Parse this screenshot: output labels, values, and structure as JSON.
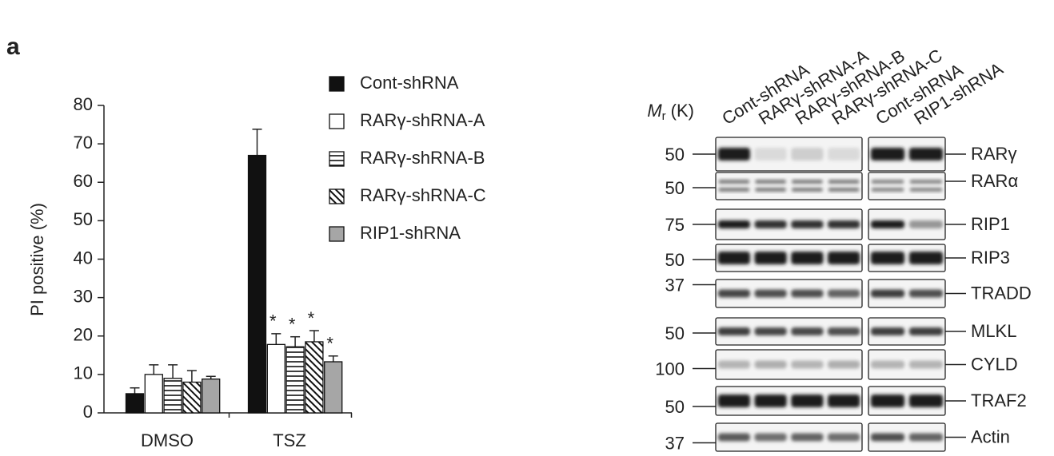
{
  "panel_label": "a",
  "chart_data": {
    "type": "bar",
    "ylabel": "PI positive (%)",
    "categories": [
      "DMSO",
      "TSZ"
    ],
    "series": [
      {
        "name": "Cont-shRNA",
        "color": "#111111",
        "pattern": "solid",
        "values": [
          5,
          67
        ],
        "errors": [
          1.5,
          6.8
        ]
      },
      {
        "name": "RARγ-shRNA-A",
        "color": "#ffffff",
        "pattern": "solid",
        "values": [
          10,
          17.8
        ],
        "errors": [
          2.5,
          2.8
        ]
      },
      {
        "name": "RARγ-shRNA-B",
        "color": "#ffffff",
        "pattern": "horizontal",
        "values": [
          9,
          17.2
        ],
        "errors": [
          3.5,
          2.6
        ]
      },
      {
        "name": "RARγ-shRNA-C",
        "color": "#ffffff",
        "pattern": "diagonal",
        "values": [
          8,
          18.5
        ],
        "errors": [
          3,
          2.9
        ]
      },
      {
        "name": "RIP1-shRNA",
        "color": "#a6a6a6",
        "pattern": "solid",
        "values": [
          8.8,
          13.3
        ],
        "errors": [
          0.7,
          1.5
        ]
      }
    ],
    "ylim": [
      0,
      80
    ],
    "yticks": [
      0,
      10,
      20,
      30,
      40,
      50,
      60,
      70,
      80
    ],
    "annotations": [
      {
        "text": "*",
        "series": 1,
        "category": 1
      },
      {
        "text": "*",
        "series": 2,
        "category": 1
      },
      {
        "text": "*",
        "series": 3,
        "category": 1
      },
      {
        "text": "*",
        "series": 4,
        "category": 1
      }
    ]
  },
  "blot": {
    "mr_label": {
      "symbol": "M",
      "subscript": "r",
      "unit": "(K)"
    },
    "lane_groups": [
      [
        "Cont-shRNA",
        "RARγ-shRNA-A",
        "RARγ-shRNA-B",
        "RARγ-shRNA-C"
      ],
      [
        "Cont-shRNA",
        "RIP1-shRNA"
      ]
    ],
    "rows": [
      {
        "mr": "50",
        "protein": "RARγ"
      },
      {
        "mr": "50",
        "protein": "RARα"
      },
      {
        "mr": "75",
        "protein": "RIP1"
      },
      {
        "mr": "50",
        "protein": "RIP3"
      },
      {
        "mr": "37",
        "protein": "TRADD"
      },
      {
        "mr": "50",
        "protein": "MLKL"
      },
      {
        "mr": "100",
        "protein": "CYLD"
      },
      {
        "mr": "50",
        "protein": "TRAF2"
      },
      {
        "mr": "37",
        "protein": "Actin"
      }
    ]
  }
}
